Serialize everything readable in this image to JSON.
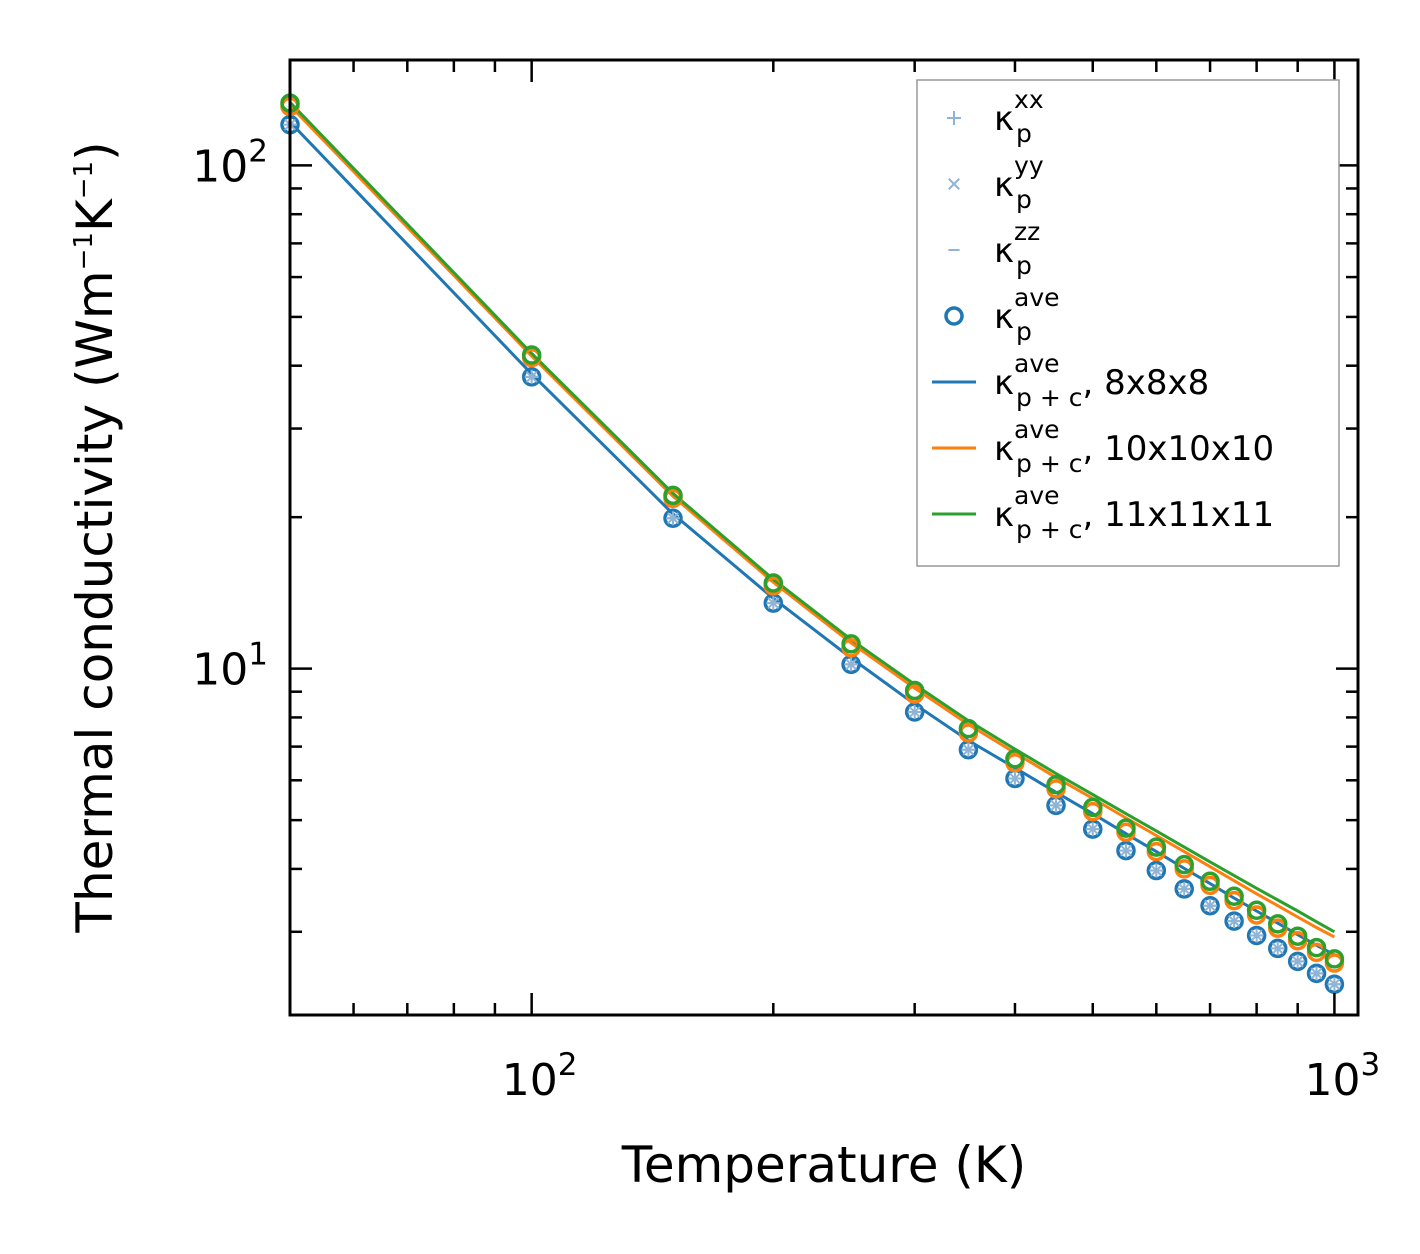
{
  "chart_data": {
    "type": "line",
    "xscale": "log",
    "yscale": "log",
    "xlim": [
      50,
      1070
    ],
    "ylim": [
      2.05,
      162
    ],
    "xlabel": "Temperature (K)",
    "ylabel": {
      "base": "Thermal conductivity (Wm",
      "sup1": "−1",
      "mid": "K",
      "sup2": "−1",
      "end": ")"
    },
    "x_ticks": [
      {
        "value": 100,
        "base": "10",
        "exp": "2"
      },
      {
        "value": 1000,
        "base": "10",
        "exp": "3"
      }
    ],
    "y_ticks": [
      {
        "value": 10,
        "base": "10",
        "exp": "1"
      },
      {
        "value": 100,
        "base": "10",
        "exp": "2"
      }
    ],
    "temperatures": [
      50,
      100,
      150,
      200,
      250,
      300,
      350,
      400,
      450,
      500,
      550,
      600,
      650,
      700,
      750,
      800,
      850,
      900,
      950,
      1000
    ],
    "series": [
      {
        "name": "kxx",
        "kind": "marker",
        "marker": "plus",
        "color": "#8fb4d6",
        "label": {
          "base": "κ",
          "sub": "p",
          "sup": "xx",
          "suffix": ""
        },
        "values": [
          120.5,
          38.0,
          19.9,
          13.5,
          10.2,
          8.2,
          6.9,
          6.05,
          5.35,
          4.8,
          4.35,
          3.97,
          3.65,
          3.38,
          3.15,
          2.95,
          2.78,
          2.62,
          2.48,
          2.36
        ]
      },
      {
        "name": "kyy",
        "kind": "marker",
        "marker": "x",
        "color": "#8fb4d6",
        "label": {
          "base": "κ",
          "sub": "p",
          "sup": "yy",
          "suffix": ""
        },
        "values": [
          120.5,
          38.0,
          19.9,
          13.5,
          10.2,
          8.2,
          6.9,
          6.05,
          5.35,
          4.8,
          4.35,
          3.97,
          3.65,
          3.38,
          3.15,
          2.95,
          2.78,
          2.62,
          2.48,
          2.36
        ]
      },
      {
        "name": "kzz",
        "kind": "marker",
        "marker": "dash",
        "color": "#8fb4d6",
        "label": {
          "base": "κ",
          "sub": "p",
          "sup": "zz",
          "suffix": ""
        },
        "values": [
          120.5,
          38.0,
          19.9,
          13.5,
          10.2,
          8.2,
          6.9,
          6.05,
          5.35,
          4.8,
          4.35,
          3.97,
          3.65,
          3.38,
          3.15,
          2.95,
          2.78,
          2.62,
          2.48,
          2.36
        ]
      },
      {
        "name": "kave_8",
        "kind": "marker",
        "marker": "circle",
        "color": "#1f77b4",
        "label": {
          "base": "κ",
          "sub": "p",
          "sup": "ave",
          "suffix": ""
        },
        "values": [
          120.5,
          38.0,
          19.9,
          13.5,
          10.2,
          8.2,
          6.9,
          6.05,
          5.35,
          4.8,
          4.35,
          3.97,
          3.65,
          3.38,
          3.15,
          2.95,
          2.78,
          2.62,
          2.48,
          2.36
        ]
      },
      {
        "name": "kave_10",
        "kind": "marker",
        "marker": "circle",
        "color": "#ff7f0e",
        "label": null,
        "values": [
          131.0,
          41.5,
          21.8,
          14.6,
          11.0,
          8.9,
          7.45,
          6.5,
          5.77,
          5.2,
          4.73,
          4.33,
          4.0,
          3.71,
          3.46,
          3.24,
          3.05,
          2.88,
          2.73,
          2.6
        ]
      },
      {
        "name": "kave_11",
        "kind": "marker",
        "marker": "circle",
        "color": "#2ca02c",
        "label": null,
        "values": [
          133.0,
          42.0,
          22.1,
          14.8,
          11.2,
          9.05,
          7.6,
          6.62,
          5.88,
          5.3,
          4.82,
          4.42,
          4.08,
          3.78,
          3.53,
          3.31,
          3.11,
          2.94,
          2.79,
          2.65
        ]
      },
      {
        "name": "kpc_8",
        "kind": "line",
        "color": "#1f77b4",
        "label": {
          "base": "κ",
          "sub": "p + c",
          "sup": "ave",
          "suffix": ", 8x8x8"
        },
        "values": [
          122.0,
          38.5,
          20.3,
          13.8,
          10.5,
          8.5,
          7.2,
          6.35,
          5.68,
          5.15,
          4.7,
          4.33,
          4.01,
          3.74,
          3.5,
          3.3,
          3.12,
          2.96,
          2.82,
          2.7
        ]
      },
      {
        "name": "kpc_10",
        "kind": "line",
        "color": "#ff7f0e",
        "label": {
          "base": "κ",
          "sub": "p + c",
          "sup": "ave",
          "suffix": ", 10x10x10"
        },
        "values": [
          131.5,
          41.8,
          22.0,
          14.85,
          11.25,
          9.15,
          7.75,
          6.8,
          6.08,
          5.52,
          5.05,
          4.66,
          4.33,
          4.04,
          3.79,
          3.57,
          3.38,
          3.21,
          3.06,
          2.93
        ]
      },
      {
        "name": "kpc_11",
        "kind": "line",
        "color": "#2ca02c",
        "label": {
          "base": "κ",
          "sub": "p + c",
          "sup": "ave",
          "suffix": ", 11x11x11"
        },
        "values": [
          133.5,
          42.3,
          22.3,
          15.05,
          11.42,
          9.3,
          7.88,
          6.92,
          6.19,
          5.62,
          5.15,
          4.76,
          4.42,
          4.13,
          3.88,
          3.66,
          3.47,
          3.3,
          3.14,
          3.0
        ]
      }
    ],
    "legend_order": [
      "kxx",
      "kyy",
      "kzz",
      "kave_8",
      "kpc_8",
      "kpc_10",
      "kpc_11"
    ],
    "legend_position": "top-right"
  }
}
